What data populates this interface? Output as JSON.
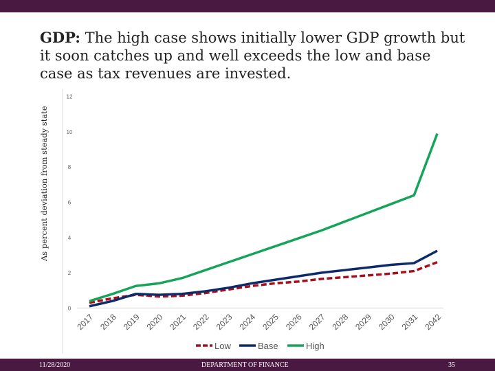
{
  "slide": {
    "title_bold": "GDP:",
    "title_rest": " The high case shows initially lower GDP growth but it soon catches up and well exceeds the low and base case as tax revenues are invested."
  },
  "footer": {
    "date": "11/28/2020",
    "org": "DEPARTMENT OF FINANCE",
    "page": "35"
  },
  "colors": {
    "bar": "#4a1942",
    "low": "#a5101a",
    "base": "#0d2a6b",
    "high": "#16a45a"
  },
  "chart_data": {
    "type": "line",
    "ylabel": "As percent deviation from steady state",
    "ylim": [
      0,
      12
    ],
    "yticks": [
      0,
      2,
      4,
      6,
      8,
      10,
      12
    ],
    "grid": false,
    "legend": "bottom",
    "categories": [
      "2017",
      "2018",
      "2019",
      "2020",
      "2021",
      "2022",
      "2023",
      "2024",
      "2025",
      "2026",
      "2027",
      "2028",
      "2029",
      "2030",
      "2031",
      "2042"
    ],
    "series": [
      {
        "name": "Low",
        "style": "dashed",
        "values": [
          0.3,
          0.55,
          0.75,
          0.65,
          0.7,
          0.85,
          1.05,
          1.25,
          1.4,
          1.5,
          1.65,
          1.75,
          1.85,
          1.95,
          2.1,
          2.6
        ]
      },
      {
        "name": "Base",
        "style": "solid",
        "values": [
          0.1,
          0.4,
          0.8,
          0.75,
          0.8,
          0.95,
          1.15,
          1.4,
          1.6,
          1.8,
          2.0,
          2.15,
          2.3,
          2.45,
          2.55,
          3.25
        ]
      },
      {
        "name": "High",
        "style": "solid",
        "values": [
          0.39,
          0.8,
          1.25,
          1.4,
          1.7,
          2.15,
          2.6,
          3.05,
          3.5,
          3.95,
          4.4,
          4.9,
          5.4,
          5.9,
          6.4,
          9.9
        ]
      }
    ]
  }
}
